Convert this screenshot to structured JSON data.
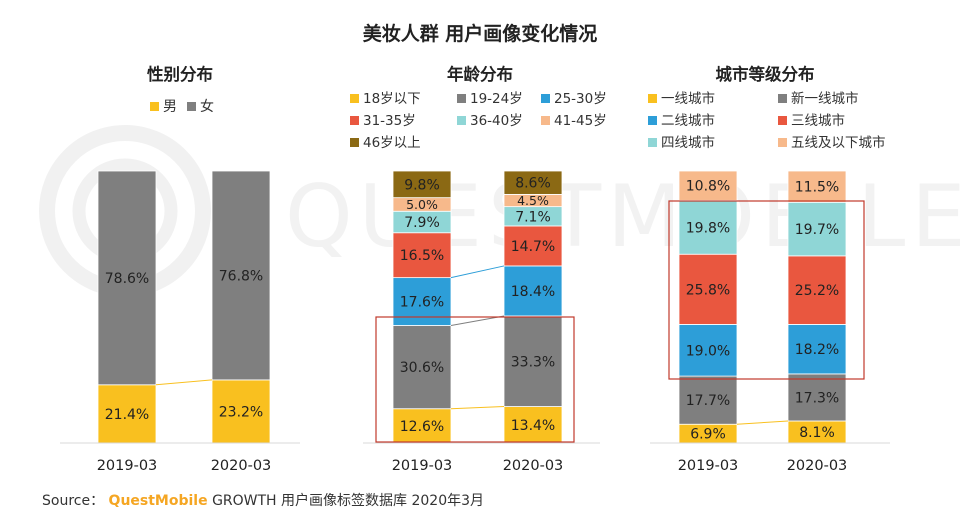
{
  "main_title": "美妆人群 用户画像变化情况",
  "source": {
    "prefix": "Source：",
    "brand": "QuestMobile",
    "rest": "GROWTH 用户画像标签数据库 2020年3月"
  },
  "watermark": {
    "text": "QUESTMOBILE"
  },
  "colors": {
    "yellow": "#f9c01f",
    "gray": "#7f7f7f",
    "blue": "#2d9ed8",
    "red": "#e9573f",
    "teal": "#8fd6d6",
    "peach": "#f7b98b",
    "olive": "#8b6914",
    "highlight": "#c0392b",
    "connector": "#c9c9c9"
  },
  "chart_data": [
    {
      "type": "bar",
      "stacked": true,
      "title": "性别分布",
      "categories": [
        "2019-03",
        "2020-03"
      ],
      "ylim": [
        0,
        100
      ],
      "legend": "top",
      "series": [
        {
          "name": "男",
          "color": "#f9c01f",
          "values": [
            21.4,
            23.2
          ],
          "labels": [
            "21.4%",
            "23.2%"
          ]
        },
        {
          "name": "女",
          "color": "#7f7f7f",
          "values": [
            78.6,
            76.8
          ],
          "labels": [
            "78.6%",
            "76.8%"
          ]
        }
      ]
    },
    {
      "type": "bar",
      "stacked": true,
      "title": "年龄分布",
      "categories": [
        "2019-03",
        "2020-03"
      ],
      "ylim": [
        0,
        100
      ],
      "legend": "top",
      "series": [
        {
          "name": "18岁以下",
          "color": "#f9c01f",
          "values": [
            12.6,
            13.4
          ],
          "labels": [
            "12.6%",
            "13.4%"
          ]
        },
        {
          "name": "19-24岁",
          "color": "#7f7f7f",
          "values": [
            30.6,
            33.3
          ],
          "labels": [
            "30.6%",
            "33.3%"
          ]
        },
        {
          "name": "25-30岁",
          "color": "#2d9ed8",
          "values": [
            17.6,
            18.4
          ],
          "labels": [
            "17.6%",
            "18.4%"
          ]
        },
        {
          "name": "31-35岁",
          "color": "#e9573f",
          "values": [
            16.5,
            14.7
          ],
          "labels": [
            "16.5%",
            "14.7%"
          ]
        },
        {
          "name": "36-40岁",
          "color": "#8fd6d6",
          "values": [
            7.9,
            7.1
          ],
          "labels": [
            "7.9%",
            "7.1%"
          ]
        },
        {
          "name": "41-45岁",
          "color": "#f7b98b",
          "values": [
            5.0,
            4.5
          ],
          "labels": [
            "5.0%",
            "4.5%"
          ]
        },
        {
          "name": "46岁以上",
          "color": "#8b6914",
          "values": [
            9.8,
            8.6
          ],
          "labels": [
            "9.8%",
            "8.6%"
          ]
        }
      ]
    },
    {
      "type": "bar",
      "stacked": true,
      "title": "城市等级分布",
      "categories": [
        "2019-03",
        "2020-03"
      ],
      "ylim": [
        0,
        100
      ],
      "legend": "top",
      "series": [
        {
          "name": "一线城市",
          "color": "#f9c01f",
          "values": [
            6.9,
            8.1
          ],
          "labels": [
            "6.9%",
            "8.1%"
          ]
        },
        {
          "name": "新一线城市",
          "color": "#7f7f7f",
          "values": [
            17.7,
            17.3
          ],
          "labels": [
            "17.7%",
            "17.3%"
          ]
        },
        {
          "name": "二线城市",
          "color": "#2d9ed8",
          "values": [
            19.0,
            18.2
          ],
          "labels": [
            "19.0%",
            "18.2%"
          ]
        },
        {
          "name": "三线城市",
          "color": "#e9573f",
          "values": [
            25.8,
            25.2
          ],
          "labels": [
            "25.8%",
            "25.2%"
          ]
        },
        {
          "name": "四线城市",
          "color": "#8fd6d6",
          "values": [
            19.8,
            19.7
          ],
          "labels": [
            "19.8%",
            "19.7%"
          ]
        },
        {
          "name": "五线及以下城市",
          "color": "#f7b98b",
          "values": [
            10.8,
            11.5
          ],
          "labels": [
            "10.8%",
            "11.5%"
          ]
        }
      ]
    }
  ]
}
